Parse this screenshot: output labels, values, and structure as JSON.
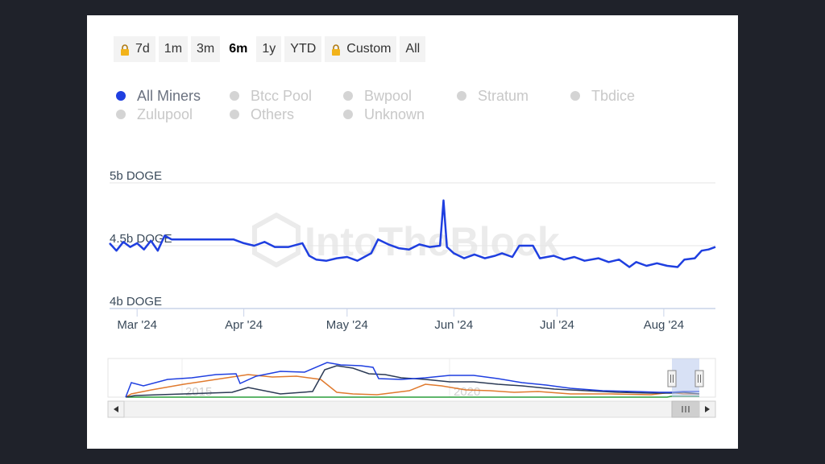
{
  "range_buttons": [
    {
      "label": "7d",
      "locked": true,
      "active": false
    },
    {
      "label": "1m",
      "locked": false,
      "active": false
    },
    {
      "label": "3m",
      "locked": false,
      "active": false
    },
    {
      "label": "6m",
      "locked": false,
      "active": true
    },
    {
      "label": "1y",
      "locked": false,
      "active": false
    },
    {
      "label": "YTD",
      "locked": false,
      "active": false
    },
    {
      "label": "Custom",
      "locked": true,
      "active": false
    },
    {
      "label": "All",
      "locked": false,
      "active": false
    }
  ],
  "legend": [
    {
      "name": "All Miners",
      "enabled": true
    },
    {
      "name": "Btcc Pool",
      "enabled": false
    },
    {
      "name": "Bwpool",
      "enabled": false
    },
    {
      "name": "Stratum",
      "enabled": false
    },
    {
      "name": "Tbdice",
      "enabled": false
    },
    {
      "name": "Zulupool",
      "enabled": false
    },
    {
      "name": "Others",
      "enabled": false
    },
    {
      "name": "Unknown",
      "enabled": false
    }
  ],
  "watermark": "IntoTheBlock",
  "colors": {
    "series": "#1f3fe0",
    "navigator_orange": "#e07a2e",
    "navigator_green": "#2a9d3a",
    "navigator_dark": "#2b3a55"
  },
  "chart_data": {
    "type": "line",
    "y_ticks": [
      "5b DOGE",
      "4.5b DOGE",
      "4b DOGE"
    ],
    "y_tick_values": [
      5.0,
      4.5,
      4.0
    ],
    "ylim": [
      4.0,
      5.0
    ],
    "x_ticks": [
      "Mar '24",
      "Apr '24",
      "May '24",
      "Jun '24",
      "Jul '24",
      "Aug '24"
    ],
    "x_tick_dates": [
      "2024-03-01",
      "2024-04-01",
      "2024-05-01",
      "2024-06-01",
      "2024-07-01",
      "2024-08-01"
    ],
    "xlim": [
      "2024-02-22",
      "2024-08-16"
    ],
    "series": [
      {
        "name": "All Miners",
        "points": [
          [
            "2024-02-22",
            4.52
          ],
          [
            "2024-02-24",
            4.46
          ],
          [
            "2024-02-26",
            4.53
          ],
          [
            "2024-02-28",
            4.49
          ],
          [
            "2024-03-01",
            4.52
          ],
          [
            "2024-03-03",
            4.47
          ],
          [
            "2024-03-05",
            4.54
          ],
          [
            "2024-03-07",
            4.46
          ],
          [
            "2024-03-09",
            4.58
          ],
          [
            "2024-03-11",
            4.55
          ],
          [
            "2024-03-20",
            4.55
          ],
          [
            "2024-03-29",
            4.55
          ],
          [
            "2024-04-01",
            4.52
          ],
          [
            "2024-04-04",
            4.5
          ],
          [
            "2024-04-07",
            4.53
          ],
          [
            "2024-04-10",
            4.49
          ],
          [
            "2024-04-14",
            4.49
          ],
          [
            "2024-04-18",
            4.52
          ],
          [
            "2024-04-20",
            4.42
          ],
          [
            "2024-04-22",
            4.39
          ],
          [
            "2024-04-25",
            4.38
          ],
          [
            "2024-04-28",
            4.4
          ],
          [
            "2024-05-01",
            4.41
          ],
          [
            "2024-05-04",
            4.38
          ],
          [
            "2024-05-08",
            4.44
          ],
          [
            "2024-05-10",
            4.55
          ],
          [
            "2024-05-13",
            4.51
          ],
          [
            "2024-05-16",
            4.48
          ],
          [
            "2024-05-19",
            4.47
          ],
          [
            "2024-05-22",
            4.51
          ],
          [
            "2024-05-25",
            4.49
          ],
          [
            "2024-05-28",
            4.5
          ],
          [
            "2024-05-29",
            4.86
          ],
          [
            "2024-05-30",
            4.49
          ],
          [
            "2024-06-01",
            4.44
          ],
          [
            "2024-06-04",
            4.4
          ],
          [
            "2024-06-07",
            4.43
          ],
          [
            "2024-06-10",
            4.4
          ],
          [
            "2024-06-13",
            4.42
          ],
          [
            "2024-06-15",
            4.44
          ],
          [
            "2024-06-18",
            4.41
          ],
          [
            "2024-06-20",
            4.5
          ],
          [
            "2024-06-24",
            4.5
          ],
          [
            "2024-06-26",
            4.4
          ],
          [
            "2024-06-30",
            4.42
          ],
          [
            "2024-07-03",
            4.39
          ],
          [
            "2024-07-06",
            4.41
          ],
          [
            "2024-07-09",
            4.38
          ],
          [
            "2024-07-13",
            4.4
          ],
          [
            "2024-07-16",
            4.37
          ],
          [
            "2024-07-19",
            4.39
          ],
          [
            "2024-07-22",
            4.33
          ],
          [
            "2024-07-24",
            4.37
          ],
          [
            "2024-07-27",
            4.34
          ],
          [
            "2024-07-30",
            4.36
          ],
          [
            "2024-08-02",
            4.34
          ],
          [
            "2024-08-05",
            4.33
          ],
          [
            "2024-08-07",
            4.39
          ],
          [
            "2024-08-10",
            4.4
          ],
          [
            "2024-08-12",
            4.46
          ],
          [
            "2024-08-14",
            4.47
          ],
          [
            "2024-08-16",
            4.49
          ]
        ]
      }
    ],
    "navigator": {
      "x_labels": [
        "2015",
        "2020"
      ]
    }
  }
}
